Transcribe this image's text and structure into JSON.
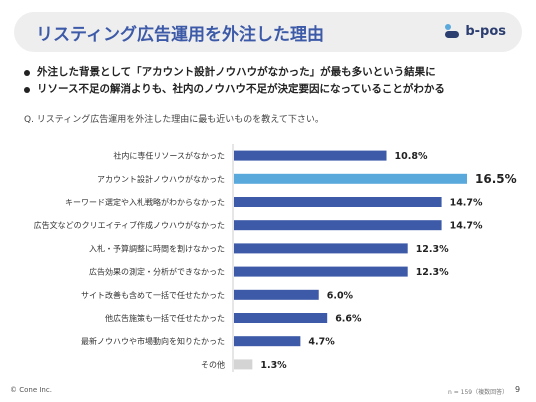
{
  "header": {
    "title": "リスティング広告運用を外注した理由",
    "logo_text": "b-pos"
  },
  "bullets": [
    "外注した背景として「アカウント設計ノウハウがなかった」が最も多いという結果に",
    "リソース不足の解消よりも、社内のノウハウ不足が決定要因になっていることがわかる"
  ],
  "question": "Q. リスティング広告運用を外注した理由に最も近いものを教えて下さい。",
  "chart_data": {
    "type": "bar",
    "orientation": "horizontal",
    "categories": [
      "社内に専任リソースがなかった",
      "アカウント設計ノウハウがなかった",
      "キーワード選定や入札戦略がわからなかった",
      "広告文などのクリエイティブ作成ノウハウがなかった",
      "入札・予算調整に時間を割けなかった",
      "広告効果の測定・分析ができなかった",
      "サイト改善も含めて一括で任せたかった",
      "他広告施策も一括で任せたかった",
      "最新ノウハウや市場動向を知りたかった",
      "その他"
    ],
    "values": [
      10.8,
      16.5,
      14.7,
      14.7,
      12.3,
      12.3,
      6.0,
      6.6,
      4.7,
      1.3
    ],
    "value_labels": [
      "10.8%",
      "16.5%",
      "14.7%",
      "14.7%",
      "12.3%",
      "12.3%",
      "6.0%",
      "6.6%",
      "4.7%",
      "1.3%"
    ],
    "highlight_index": 1,
    "xlim": [
      0,
      16.5
    ],
    "grid": false,
    "colors": {
      "default": "#3d5aa8",
      "highlight": "#5aa9dc",
      "other": "#d4d4d4"
    }
  },
  "footer": {
    "copyright": "© Cone Inc.",
    "note": "n = 159（複数回答）",
    "page": "9"
  }
}
